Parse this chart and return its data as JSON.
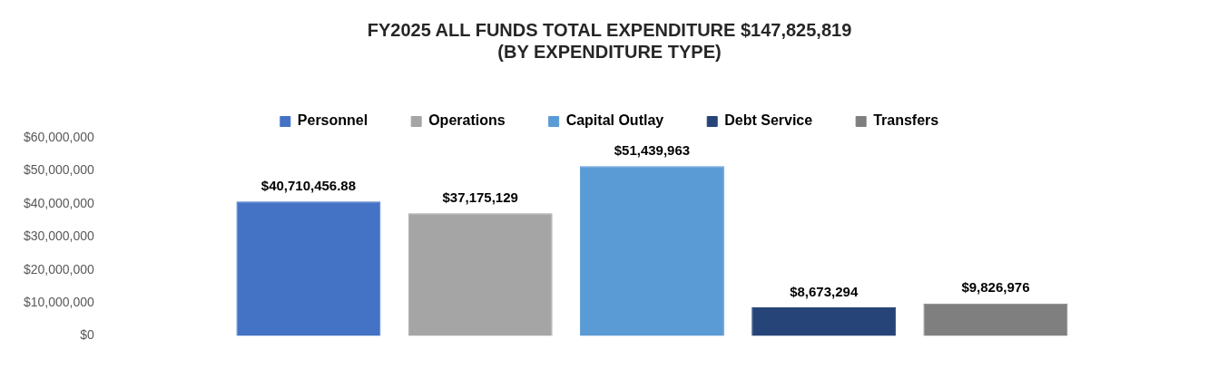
{
  "chart_data": {
    "type": "bar",
    "title": "FY2025 ALL FUNDS TOTAL EXPENDITURE $147,825,819\n(BY EXPENDITURE TYPE)",
    "categories": [
      null
    ],
    "series": [
      {
        "name": "Personnel",
        "color": "#4472c4",
        "values": [
          40710456.88
        ],
        "value_labels": [
          "$40,710,456.88"
        ]
      },
      {
        "name": "Operations",
        "color": "#a5a5a5",
        "values": [
          37175129
        ],
        "value_labels": [
          "$37,175,129"
        ]
      },
      {
        "name": "Capital Outlay",
        "color": "#5b9bd5",
        "values": [
          51439963
        ],
        "value_labels": [
          "$51,439,963"
        ]
      },
      {
        "name": "Debt Service",
        "color": "#264478",
        "values": [
          8673294
        ],
        "value_labels": [
          "$8,673,294"
        ]
      },
      {
        "name": "Transfers",
        "color": "#7f7f7f",
        "values": [
          9826976
        ],
        "value_labels": [
          "$9,826,976"
        ]
      }
    ],
    "ylim": [
      0,
      60000000
    ],
    "yticks": [
      {
        "value": 0,
        "label": "$0"
      },
      {
        "value": 10000000,
        "label": "$10,000,000"
      },
      {
        "value": 20000000,
        "label": "$20,000,000"
      },
      {
        "value": 30000000,
        "label": "$30,000,000"
      },
      {
        "value": 40000000,
        "label": "$40,000,000"
      },
      {
        "value": 50000000,
        "label": "$50,000,000"
      },
      {
        "value": 60000000,
        "label": "$60,000,000"
      }
    ],
    "grid": false,
    "legend": "top"
  }
}
